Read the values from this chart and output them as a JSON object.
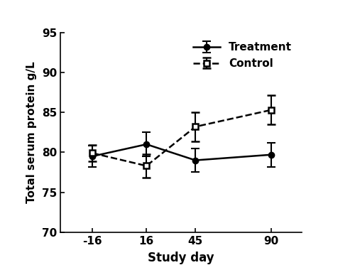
{
  "study_days": [
    -16,
    16,
    45,
    90
  ],
  "treatment_means": [
    79.5,
    81.0,
    79.0,
    79.7
  ],
  "treatment_sem": [
    1.3,
    1.5,
    1.5,
    1.5
  ],
  "control_means": [
    79.9,
    78.3,
    83.2,
    85.3
  ],
  "control_sem": [
    1.0,
    1.5,
    1.8,
    1.8
  ],
  "xlabel": "Study day",
  "ylabel": "Total serum protein g/L",
  "ylim": [
    70,
    95
  ],
  "yticks": [
    70,
    75,
    80,
    85,
    90,
    95
  ],
  "xtick_labels": [
    "-16",
    "16",
    "45",
    "90"
  ],
  "legend_treatment": "Treatment",
  "legend_control": "Control",
  "line_color": "#000000",
  "bg_color": "#ffffff"
}
